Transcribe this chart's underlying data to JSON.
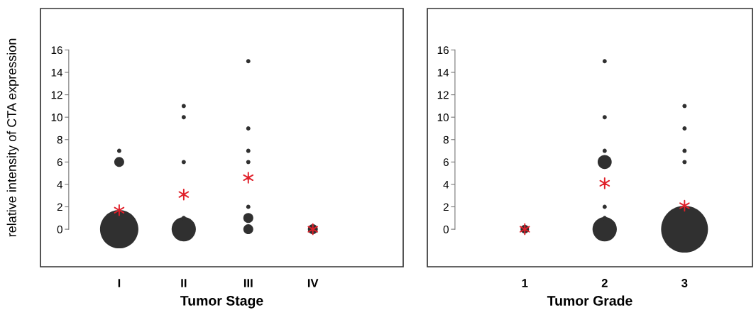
{
  "chart_data": [
    {
      "type": "bubble",
      "xlabel": "Tumor Stage",
      "ylabel": "relative intensity of CTA expression",
      "categories": [
        "I",
        "II",
        "III",
        "IV"
      ],
      "ylim": [
        -3.35,
        19.7
      ],
      "yticks": [
        0,
        2,
        4,
        6,
        8,
        10,
        12,
        14,
        16
      ],
      "series": [
        {
          "type": "bubble",
          "color": "#303030",
          "marker": "circle",
          "x": [
            "I",
            "I",
            "I",
            "II",
            "II",
            "II",
            "II",
            "II",
            "III",
            "III",
            "III",
            "III",
            "III",
            "III",
            "III",
            "IV"
          ],
          "values": [
            0,
            6,
            7,
            0,
            1,
            6,
            10,
            11,
            0,
            1,
            2,
            6,
            7,
            9,
            15,
            0
          ],
          "sizes": [
            1,
            0.067,
            0.012,
            0.4,
            0.012,
            0.012,
            0.012,
            0.012,
            0.067,
            0.067,
            0.012,
            0.012,
            0.012,
            0.012,
            0.012,
            0.067
          ]
        },
        {
          "type": "scatter",
          "color": "#e0202a",
          "marker": "cross",
          "x": [
            "I",
            "II",
            "III",
            "IV"
          ],
          "values": [
            1.7,
            3.1,
            4.6,
            0
          ]
        }
      ]
    },
    {
      "type": "bubble",
      "xlabel": "Tumor Grade",
      "categories": [
        "1",
        "2",
        "3"
      ],
      "ylim": [
        -3.35,
        19.7
      ],
      "yticks": [
        0,
        2,
        4,
        6,
        8,
        10,
        12,
        14,
        16
      ],
      "series": [
        {
          "type": "bubble",
          "color": "#303030",
          "marker": "circle",
          "x": [
            "1",
            "2",
            "2",
            "2",
            "2",
            "2",
            "2",
            "2",
            "3",
            "3",
            "3",
            "3",
            "3"
          ],
          "values": [
            0,
            0,
            1,
            2,
            6,
            7,
            10,
            15,
            0,
            6,
            7,
            9,
            11
          ],
          "sizes": [
            0.033,
            0.27,
            0.008,
            0.008,
            0.09,
            0.008,
            0.008,
            0.008,
            1,
            0.008,
            0.008,
            0.008,
            0.008
          ]
        },
        {
          "type": "scatter",
          "color": "#e0202a",
          "marker": "cross",
          "x": [
            "1",
            "2",
            "3"
          ],
          "values": [
            0,
            4.1,
            2.1
          ]
        }
      ]
    }
  ]
}
